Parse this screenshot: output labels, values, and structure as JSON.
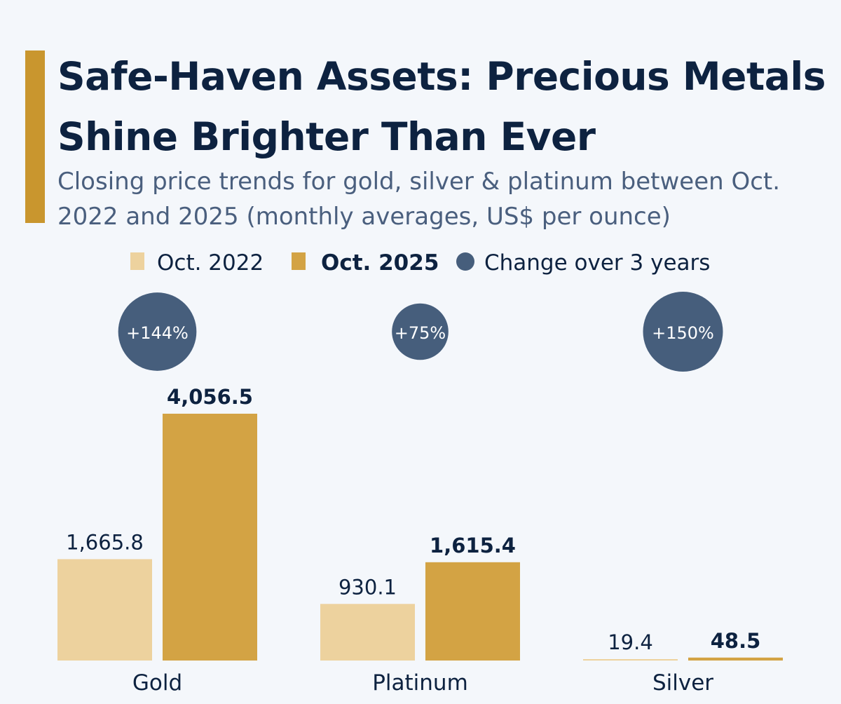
{
  "header": {
    "title": "Safe-Haven Assets: Precious Metals Shine Brighter Than Ever",
    "subtitle": "Closing price trends for gold, silver & platinum between Oct. 2022 and 2025 (monthly averages, US$ per ounce)"
  },
  "chart_data": {
    "type": "bar",
    "title": "Safe-Haven Assets: Precious Metals Shine Brighter Than Ever",
    "subtitle": "Closing price trends for gold, silver & platinum between Oct. 2022 and 2025 (monthly averages, US$ per ounce)",
    "categories": [
      "Gold",
      "Platinum",
      "Silver"
    ],
    "series": [
      {
        "name": "Oct. 2022",
        "values": [
          1665.8,
          930.1,
          19.4
        ],
        "labels": [
          "1,665.8",
          "930.1",
          "19.4"
        ],
        "color": "#edd29e"
      },
      {
        "name": "Oct. 2025",
        "values": [
          4056.5,
          1615.4,
          48.5
        ],
        "labels": [
          "4,056.5",
          "1,615.4",
          "48.5"
        ],
        "color": "#d3a344"
      }
    ],
    "change": {
      "name": "Change over 3 years",
      "values": [
        144,
        75,
        150
      ],
      "labels": [
        "+144%",
        "+75%",
        "+150%"
      ],
      "color": "#465e7c"
    },
    "legend_placement": "top",
    "grid": false,
    "ylim": [
      0,
      4056.5
    ],
    "colors": {
      "accent": "#c9962e",
      "text": "#0d2240",
      "subtitle": "#4a5f7e",
      "background": "#f4f7fb"
    }
  }
}
